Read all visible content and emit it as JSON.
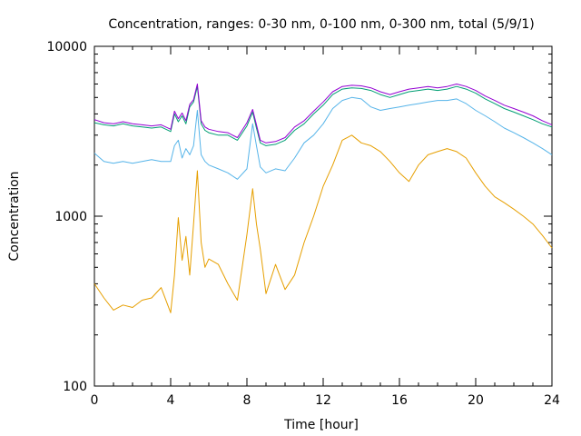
{
  "chart_data": {
    "type": "line",
    "title": "Concentration, ranges: 0-30 nm, 0-100 nm, 0-300 nm, total (5/9/1)",
    "xlabel": "Time [hour]",
    "ylabel": "Concentration",
    "xlim": [
      0,
      24
    ],
    "ylim": [
      100,
      10000
    ],
    "yscale": "log",
    "x_ticks": [
      0,
      4,
      8,
      12,
      16,
      20,
      24
    ],
    "x_tick_labels": [
      "0",
      "4",
      "8",
      "12",
      "16",
      "20",
      "24"
    ],
    "y_ticks": [
      100,
      1000,
      10000
    ],
    "y_tick_labels": [
      "100",
      "1000",
      "10000"
    ],
    "grid": false,
    "legend": "none",
    "x": [
      0,
      0.5,
      1,
      1.5,
      2,
      2.5,
      3,
      3.5,
      4,
      4.2,
      4.4,
      4.6,
      4.8,
      5.0,
      5.2,
      5.4,
      5.6,
      5.8,
      6.0,
      6.5,
      7,
      7.5,
      8,
      8.3,
      8.5,
      8.7,
      9,
      9.5,
      10,
      10.5,
      11,
      11.5,
      12,
      12.5,
      13,
      13.5,
      14,
      14.5,
      15,
      15.5,
      16,
      16.5,
      17,
      17.5,
      18,
      18.5,
      19,
      19.5,
      20,
      20.5,
      21,
      21.5,
      22,
      22.5,
      23,
      23.5,
      24
    ],
    "series": [
      {
        "values": [
          400,
          330,
          280,
          300,
          290,
          320,
          330,
          380,
          270,
          450,
          980,
          550,
          760,
          450,
          900,
          1850,
          700,
          500,
          560,
          520,
          400,
          320,
          780,
          1450,
          900,
          640,
          350,
          520,
          370,
          450,
          700,
          1000,
          1500,
          2000,
          2800,
          3000,
          2700,
          2600,
          2400,
          2100,
          1800,
          1600,
          2000,
          2300,
          2400,
          2500,
          2400,
          2200,
          1800,
          1500,
          1300,
          1200,
          1100,
          1000,
          900,
          770,
          650
        ],
        "color": "#e69f00"
      },
      {
        "values": [
          2350,
          2100,
          2050,
          2100,
          2050,
          2100,
          2150,
          2100,
          2100,
          2600,
          2800,
          2200,
          2500,
          2300,
          2600,
          4200,
          2300,
          2100,
          2000,
          1900,
          1800,
          1650,
          1900,
          3500,
          2600,
          1950,
          1800,
          1900,
          1850,
          2200,
          2700,
          3000,
          3500,
          4300,
          4800,
          5000,
          4900,
          4400,
          4200,
          4300,
          4400,
          4500,
          4600,
          4700,
          4800,
          4800,
          4900,
          4600,
          4200,
          3900,
          3600,
          3300,
          3100,
          2900,
          2700,
          2500,
          2300
        ],
        "color": "#56b4e9"
      },
      {
        "values": [
          3550,
          3450,
          3400,
          3500,
          3400,
          3350,
          3300,
          3350,
          3150,
          4000,
          3600,
          3900,
          3500,
          4400,
          4700,
          5800,
          3500,
          3200,
          3100,
          3000,
          3000,
          2800,
          3400,
          4100,
          3300,
          2700,
          2600,
          2650,
          2800,
          3200,
          3500,
          4000,
          4500,
          5200,
          5600,
          5700,
          5650,
          5500,
          5200,
          5000,
          5200,
          5400,
          5500,
          5600,
          5500,
          5600,
          5800,
          5600,
          5300,
          4900,
          4600,
          4300,
          4100,
          3900,
          3700,
          3500,
          3350
        ],
        "color": "#009e73"
      },
      {
        "values": [
          3700,
          3550,
          3500,
          3600,
          3500,
          3450,
          3400,
          3450,
          3250,
          4150,
          3750,
          4050,
          3650,
          4550,
          4850,
          6000,
          3650,
          3350,
          3250,
          3150,
          3100,
          2900,
          3550,
          4250,
          3450,
          2800,
          2700,
          2750,
          2900,
          3350,
          3650,
          4150,
          4700,
          5400,
          5800,
          5900,
          5850,
          5700,
          5400,
          5200,
          5400,
          5600,
          5700,
          5800,
          5700,
          5800,
          6000,
          5800,
          5500,
          5100,
          4800,
          4500,
          4300,
          4100,
          3900,
          3650,
          3450
        ],
        "color": "#9400d3"
      }
    ]
  }
}
